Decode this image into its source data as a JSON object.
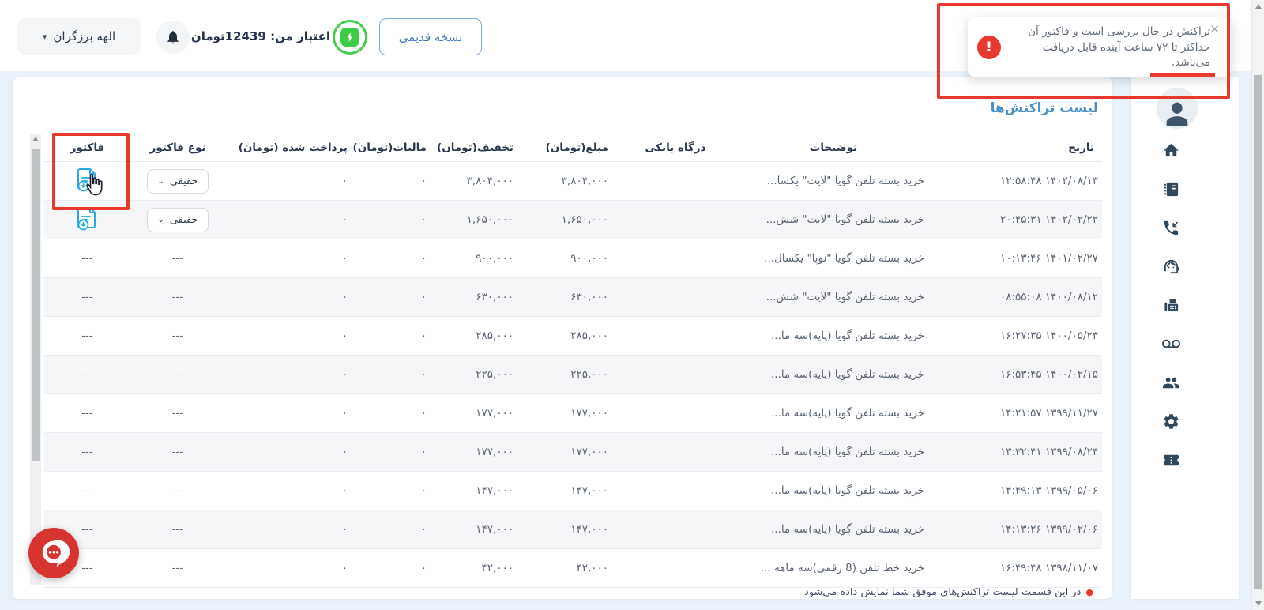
{
  "topbar": {
    "user_menu_label": "الهه برزگران",
    "credit_label": "اعتبار من: 12439تومان",
    "old_version_label": "نسخه قدیمی"
  },
  "toast": {
    "message": "تراکنش در حال بررسی است و فاکتور آن حداکثر تا ۷۲ ساعت آینده قابل دریافت می‌باشد.",
    "alert_glyph": "!",
    "close_glyph": "✕"
  },
  "main": {
    "title": "لیست تراکنش‌ها",
    "footnote": "در این قسمت لیست تراکنش‌های موفق شما نمایش داده می‌شود",
    "footnote_dot": "●"
  },
  "icons": {
    "caret_down": "▾",
    "chevron_down": "⌄"
  },
  "table": {
    "empty_cell": "---",
    "headers": [
      "تاریخ",
      "توضیحات",
      "درگاه بانکی",
      "مبلغ(تومان)",
      "تخفیف(تومان)",
      "مالیات(تومان)",
      "پرداخت شده (تومان)",
      "نوع فاکتور",
      "فاکتور"
    ],
    "rows": [
      {
        "date": "۱۴۰۲/۰۸/۱۳ ۱۲:۵۸:۴۸",
        "description": "خرید بسته تلفن گویا \"لایت\" یکسا...",
        "gateway": "",
        "amount": "۳,۸۰۴,۰۰۰",
        "discount": "۳,۸۰۴,۰۰۰",
        "tax": "۰",
        "paid": "۰",
        "invoice_type": "حقیقی",
        "has_invoice": true
      },
      {
        "date": "۱۴۰۲/۰۲/۲۲ ۲۰:۴۵:۳۱",
        "description": "خرید بسته تلفن گویا \"لایت\" شش...",
        "gateway": "",
        "amount": "۱,۶۵۰,۰۰۰",
        "discount": "۱,۶۵۰,۰۰۰",
        "tax": "۰",
        "paid": "۰",
        "invoice_type": "حقیقی",
        "has_invoice": true
      },
      {
        "date": "۱۴۰۱/۰۲/۲۷ ۱۰:۱۳:۴۶",
        "description": "خرید بسته تلفن گویا \"نوپا\" یکسال...",
        "gateway": "",
        "amount": "۹۰۰,۰۰۰",
        "discount": "۹۰۰,۰۰۰",
        "tax": "۰",
        "paid": "۰",
        "invoice_type": "---",
        "has_invoice": false
      },
      {
        "date": "۱۴۰۰/۰۸/۱۲ ۰۸:۵۵:۰۸",
        "description": "خرید بسته تلفن گویا \"لایت\" شش...",
        "gateway": "",
        "amount": "۶۳۰,۰۰۰",
        "discount": "۶۳۰,۰۰۰",
        "tax": "۰",
        "paid": "۰",
        "invoice_type": "---",
        "has_invoice": false
      },
      {
        "date": "۱۴۰۰/۰۵/۲۳ ۱۶:۲۷:۳۵",
        "description": "خرید بسته تلفن گویا (پایه)سه ما...",
        "gateway": "",
        "amount": "۲۸۵,۰۰۰",
        "discount": "۲۸۵,۰۰۰",
        "tax": "۰",
        "paid": "۰",
        "invoice_type": "---",
        "has_invoice": false
      },
      {
        "date": "۱۴۰۰/۰۲/۱۵ ۱۶:۵۳:۴۵",
        "description": "خرید بسته تلفن گویا (پایه)سه ما...",
        "gateway": "",
        "amount": "۲۲۵,۰۰۰",
        "discount": "۲۲۵,۰۰۰",
        "tax": "۰",
        "paid": "۰",
        "invoice_type": "---",
        "has_invoice": false
      },
      {
        "date": "۱۳۹۹/۱۱/۲۷ ۱۴:۲۱:۵۷",
        "description": "خرید بسته تلفن گویا (پایه)سه ما...",
        "gateway": "",
        "amount": "۱۷۷,۰۰۰",
        "discount": "۱۷۷,۰۰۰",
        "tax": "۰",
        "paid": "۰",
        "invoice_type": "---",
        "has_invoice": false
      },
      {
        "date": "۱۳۹۹/۰۸/۲۴ ۱۳:۳۲:۴۱",
        "description": "خرید بسته تلفن گویا (پایه)سه ما...",
        "gateway": "",
        "amount": "۱۷۷,۰۰۰",
        "discount": "۱۷۷,۰۰۰",
        "tax": "۰",
        "paid": "۰",
        "invoice_type": "---",
        "has_invoice": false
      },
      {
        "date": "۱۳۹۹/۰۵/۰۶ ۱۴:۴۹:۱۳",
        "description": "خرید بسته تلفن گویا (پایه)سه ما...",
        "gateway": "",
        "amount": "۱۴۷,۰۰۰",
        "discount": "۱۴۷,۰۰۰",
        "tax": "۰",
        "paid": "۰",
        "invoice_type": "---",
        "has_invoice": false
      },
      {
        "date": "۱۳۹۹/۰۲/۰۶ ۱۴:۱۳:۲۶",
        "description": "خرید بسته تلفن گویا (پایه)سه ما...",
        "gateway": "",
        "amount": "۱۴۷,۰۰۰",
        "discount": "۱۴۷,۰۰۰",
        "tax": "۰",
        "paid": "۰",
        "invoice_type": "---",
        "has_invoice": false
      },
      {
        "date": "۱۳۹۸/۱۱/۰۷ ۱۶:۴۹:۴۸",
        "description": "خرید خط تلفن (8 رقمی)سه ماهه ...",
        "gateway": "",
        "amount": "۴۲,۰۰۰",
        "discount": "۴۲,۰۰۰",
        "tax": "۰",
        "paid": "۰",
        "invoice_type": "---",
        "has_invoice": false
      }
    ]
  },
  "sidebar": {
    "icons": [
      "home",
      "contacts-book",
      "call-received",
      "support-agent",
      "fax",
      "voicemail",
      "people",
      "settings",
      "ticket"
    ]
  },
  "colors": {
    "accent_blue": "#4a90c9",
    "alert_red": "#e8392e",
    "invoice_blue": "#29abe2",
    "success_green": "#3ecb45",
    "row_stripe": "#f6f6f8",
    "page_bg": "#e9f2fa"
  }
}
